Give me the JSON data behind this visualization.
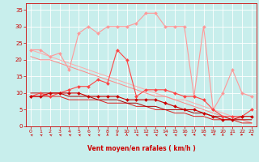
{
  "x": [
    0,
    1,
    2,
    3,
    4,
    5,
    6,
    7,
    8,
    9,
    10,
    11,
    12,
    13,
    14,
    15,
    16,
    17,
    18,
    19,
    20,
    21,
    22,
    23
  ],
  "series": [
    {
      "color": "#FF9999",
      "lw": 0.8,
      "marker": "D",
      "ms": 2.0,
      "y": [
        23,
        23,
        21,
        22,
        17,
        28,
        30,
        28,
        30,
        30,
        30,
        31,
        34,
        34,
        30,
        30,
        30,
        9,
        30,
        5,
        10,
        17,
        10,
        9
      ]
    },
    {
      "color": "#FF4444",
      "lw": 0.8,
      "marker": "D",
      "ms": 2.0,
      "y": [
        9,
        10,
        9,
        10,
        11,
        12,
        12,
        14,
        13,
        23,
        20,
        9,
        11,
        11,
        11,
        10,
        9,
        9,
        8,
        5,
        3,
        3,
        3,
        5
      ]
    },
    {
      "color": "#CC0000",
      "lw": 0.8,
      "marker": "D",
      "ms": 2.0,
      "y": [
        9,
        9,
        10,
        10,
        10,
        10,
        9,
        9,
        9,
        9,
        8,
        8,
        8,
        8,
        7,
        6,
        5,
        5,
        4,
        3,
        2,
        2,
        3,
        3
      ]
    },
    {
      "color": "#FFAAAA",
      "lw": 0.7,
      "marker": null,
      "y": [
        23,
        22,
        21,
        20,
        19,
        18,
        17,
        16,
        15,
        14,
        13,
        12,
        11,
        10,
        9,
        8,
        8,
        7,
        6,
        5,
        4,
        3,
        2,
        1
      ]
    },
    {
      "color": "#FF8888",
      "lw": 0.7,
      "marker": null,
      "y": [
        21,
        20,
        20,
        19,
        18,
        17,
        16,
        15,
        14,
        13,
        12,
        11,
        10,
        9,
        9,
        8,
        7,
        6,
        5,
        4,
        3,
        2,
        2,
        1
      ]
    },
    {
      "color": "#DD2222",
      "lw": 0.7,
      "marker": null,
      "y": [
        9,
        9,
        9,
        9,
        8,
        8,
        8,
        8,
        7,
        7,
        7,
        6,
        6,
        5,
        5,
        4,
        4,
        3,
        3,
        2,
        2,
        2,
        1,
        1
      ]
    },
    {
      "color": "#AA0000",
      "lw": 0.7,
      "marker": null,
      "y": [
        10,
        10,
        10,
        10,
        9,
        9,
        9,
        8,
        8,
        8,
        7,
        7,
        6,
        6,
        5,
        5,
        5,
        4,
        4,
        3,
        3,
        2,
        2,
        2
      ]
    }
  ],
  "arrow_directions_deg": [
    225,
    225,
    225,
    225,
    225,
    225,
    225,
    225,
    180,
    180,
    180,
    225,
    225,
    225,
    225,
    225,
    225,
    270,
    225,
    315,
    180,
    45,
    90,
    270
  ],
  "xlabel": "Vent moyen/en rafales ( km/h )",
  "xlim": [
    -0.5,
    23.5
  ],
  "ylim": [
    0,
    37
  ],
  "yticks": [
    0,
    5,
    10,
    15,
    20,
    25,
    30,
    35
  ],
  "xticks": [
    0,
    1,
    2,
    3,
    4,
    5,
    6,
    7,
    8,
    9,
    10,
    11,
    12,
    13,
    14,
    15,
    16,
    17,
    18,
    19,
    20,
    21,
    22,
    23
  ],
  "bg_color": "#C8EEEC",
  "grid_color": "#FFFFFF",
  "axis_color": "#CC0000",
  "label_color": "#CC0000"
}
